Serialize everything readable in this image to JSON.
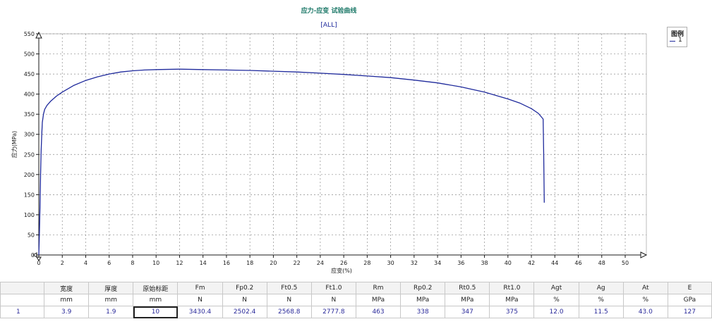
{
  "chart_data": {
    "type": "line",
    "title": "应力-应变 试验曲线",
    "subtitle": "[ALL]",
    "xlabel": "应变(%)",
    "ylabel": "应力(MPa)",
    "xlim": [
      0,
      50
    ],
    "ylim": [
      0,
      550
    ],
    "x_ticks": [
      0,
      2,
      4,
      6,
      8,
      10,
      12,
      14,
      16,
      18,
      20,
      22,
      24,
      26,
      28,
      30,
      32,
      34,
      36,
      38,
      40,
      42,
      44,
      46,
      48,
      50
    ],
    "y_ticks": [
      0,
      50,
      100,
      150,
      200,
      250,
      300,
      350,
      400,
      450,
      500,
      550
    ],
    "grid": true,
    "legend": {
      "title": "图例",
      "position": "top-right",
      "entries": [
        "1"
      ]
    },
    "series": [
      {
        "name": "1",
        "color": "#1f2a9c",
        "x": [
          0,
          0.05,
          0.1,
          0.15,
          0.2,
          0.25,
          0.3,
          0.4,
          0.5,
          0.7,
          1,
          1.5,
          2,
          3,
          4,
          5,
          6,
          7,
          8,
          9,
          10,
          12,
          14,
          16,
          18,
          20,
          22,
          24,
          26,
          28,
          30,
          32,
          34,
          36,
          38,
          40,
          41,
          42,
          42.6,
          43,
          43.05,
          43.1
        ],
        "y": [
          0,
          50,
          120,
          200,
          260,
          300,
          330,
          350,
          362,
          372,
          382,
          395,
          405,
          422,
          434,
          443,
          450,
          455,
          458,
          460,
          461,
          462,
          461,
          460,
          459,
          457,
          455,
          452,
          449,
          445,
          441,
          435,
          428,
          418,
          405,
          388,
          378,
          364,
          352,
          338,
          250,
          130
        ]
      }
    ]
  },
  "table": {
    "headers": [
      "",
      "宽度",
      "厚度",
      "原始标距",
      "Fm",
      "Fp0.2",
      "Ft0.5",
      "Ft1.0",
      "Rm",
      "Rp0.2",
      "Rt0.5",
      "Rt1.0",
      "Agt",
      "Ag",
      "At",
      "E"
    ],
    "units": [
      "",
      "mm",
      "mm",
      "mm",
      "N",
      "N",
      "N",
      "N",
      "MPa",
      "MPa",
      "MPa",
      "MPa",
      "%",
      "%",
      "%",
      "GPa"
    ],
    "rows": [
      [
        "1",
        "3.9",
        "1.9",
        "10",
        "3430.4",
        "2502.4",
        "2568.8",
        "2777.8",
        "463",
        "338",
        "347",
        "375",
        "12.0",
        "11.5",
        "43.0",
        "127"
      ]
    ]
  }
}
